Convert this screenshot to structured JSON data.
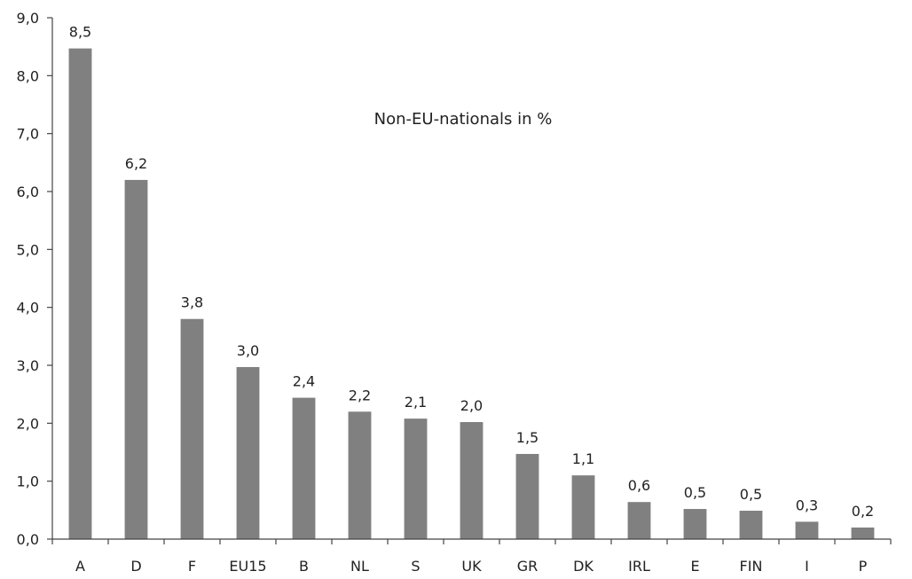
{
  "chart_data": {
    "type": "bar",
    "title": "Non-EU-nationals in %",
    "xlabel": "",
    "ylabel": "",
    "ylim": [
      0,
      9
    ],
    "ytick_step": 1,
    "grid": false,
    "bar_color": "#808080",
    "categories": [
      "A",
      "D",
      "F",
      "EU15",
      "B",
      "NL",
      "S",
      "UK",
      "GR",
      "DK",
      "IRL",
      "E",
      "FIN",
      "I",
      "P"
    ],
    "values": [
      8.47,
      6.2,
      3.8,
      2.97,
      2.44,
      2.2,
      2.08,
      2.02,
      1.47,
      1.1,
      0.64,
      0.52,
      0.49,
      0.3,
      0.2
    ],
    "value_labels": [
      "8,5",
      "6,2",
      "3,8",
      "3,0",
      "2,4",
      "2,2",
      "2,1",
      "2,0",
      "1,5",
      "1,1",
      "0,6",
      "0,5",
      "0,5",
      "0,3",
      "0,2"
    ],
    "ytick_labels": [
      "0,0",
      "1,0",
      "2,0",
      "3,0",
      "4,0",
      "5,0",
      "6,0",
      "7,0",
      "8,0",
      "9,0"
    ]
  }
}
